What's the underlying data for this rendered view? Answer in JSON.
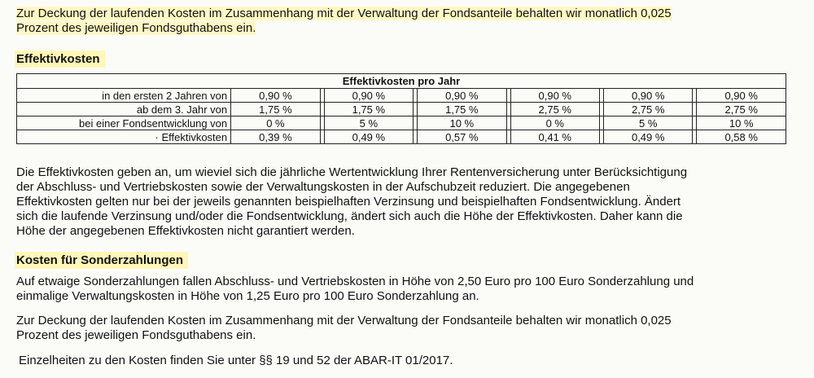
{
  "intro_paragraph": {
    "line1": "Zur Deckung der laufenden Kosten im Zusammenhang mit der Verwaltung der Fondsanteile behalten wir monatlich 0,025",
    "line2": "Prozent des jeweiligen Fondsguthabens ein."
  },
  "section_effektivkosten": {
    "heading": "Effektivkosten",
    "table_title": "Effektivkosten pro Jahr",
    "rows": [
      {
        "label": "in den ersten 2 Jahren von",
        "values": [
          "0,90 %",
          "0,90 %",
          "0,90 %",
          "0,90 %",
          "0,90 %",
          "0,90 %"
        ]
      },
      {
        "label": "ab dem 3. Jahr von",
        "values": [
          "1,75 %",
          "1,75 %",
          "1,75 %",
          "2,75 %",
          "2,75 %",
          "2,75 %"
        ]
      },
      {
        "label": "bei einer Fondsentwicklung von",
        "values": [
          "0 %",
          "5 %",
          "10 %",
          "0 %",
          "5 %",
          "10 %"
        ]
      },
      {
        "label": "· Effektivkosten",
        "values": [
          "0,39 %",
          "0,49 %",
          "0,57 %",
          "0,41 %",
          "0,49 %",
          "0,58 %"
        ]
      }
    ],
    "explanation": {
      "line1": "Die Effektivkosten geben an, um wieviel sich die jährliche Wertentwicklung Ihrer Rentenversicherung unter Berücksichtigung",
      "line2": "der Abschluss- und Vertriebskosten sowie der Verwaltungskosten in der Aufschubzeit reduziert. Die angegebenen",
      "line3": "Effektivkosten gelten nur bei der jeweils genannten beispielhaften Verzinsung und beispielhaften Fondsentwicklung. Ändert",
      "line4": "sich die laufende Verzinsung und/oder die Fondsentwicklung, ändert sich auch die Höhe der Effektivkosten. Daher kann die",
      "line5": "Höhe der angegebenen Effektivkosten nicht garantiert werden."
    }
  },
  "section_sonderzahlungen": {
    "heading": "Kosten für Sonderzahlungen",
    "para1": {
      "line1": "Auf etwaige Sonderzahlungen fallen Abschluss- und Vertriebskosten in Höhe von 2,50 Euro pro 100 Euro Sonderzahlung und",
      "line2": "einmalige Verwaltungskosten in Höhe von 1,25 Euro pro 100 Euro Sonderzahlung an."
    },
    "para2": {
      "line1": "Zur Deckung der laufenden Kosten im Zusammenhang mit der Verwaltung der Fondsanteile behalten wir monatlich 0,025",
      "line2": "Prozent des jeweiligen Fondsguthabens ein."
    },
    "para3": "Einzelheiten zu den Kosten finden Sie unter §§ 19 und 52 der ABAR-IT 01/2017."
  }
}
